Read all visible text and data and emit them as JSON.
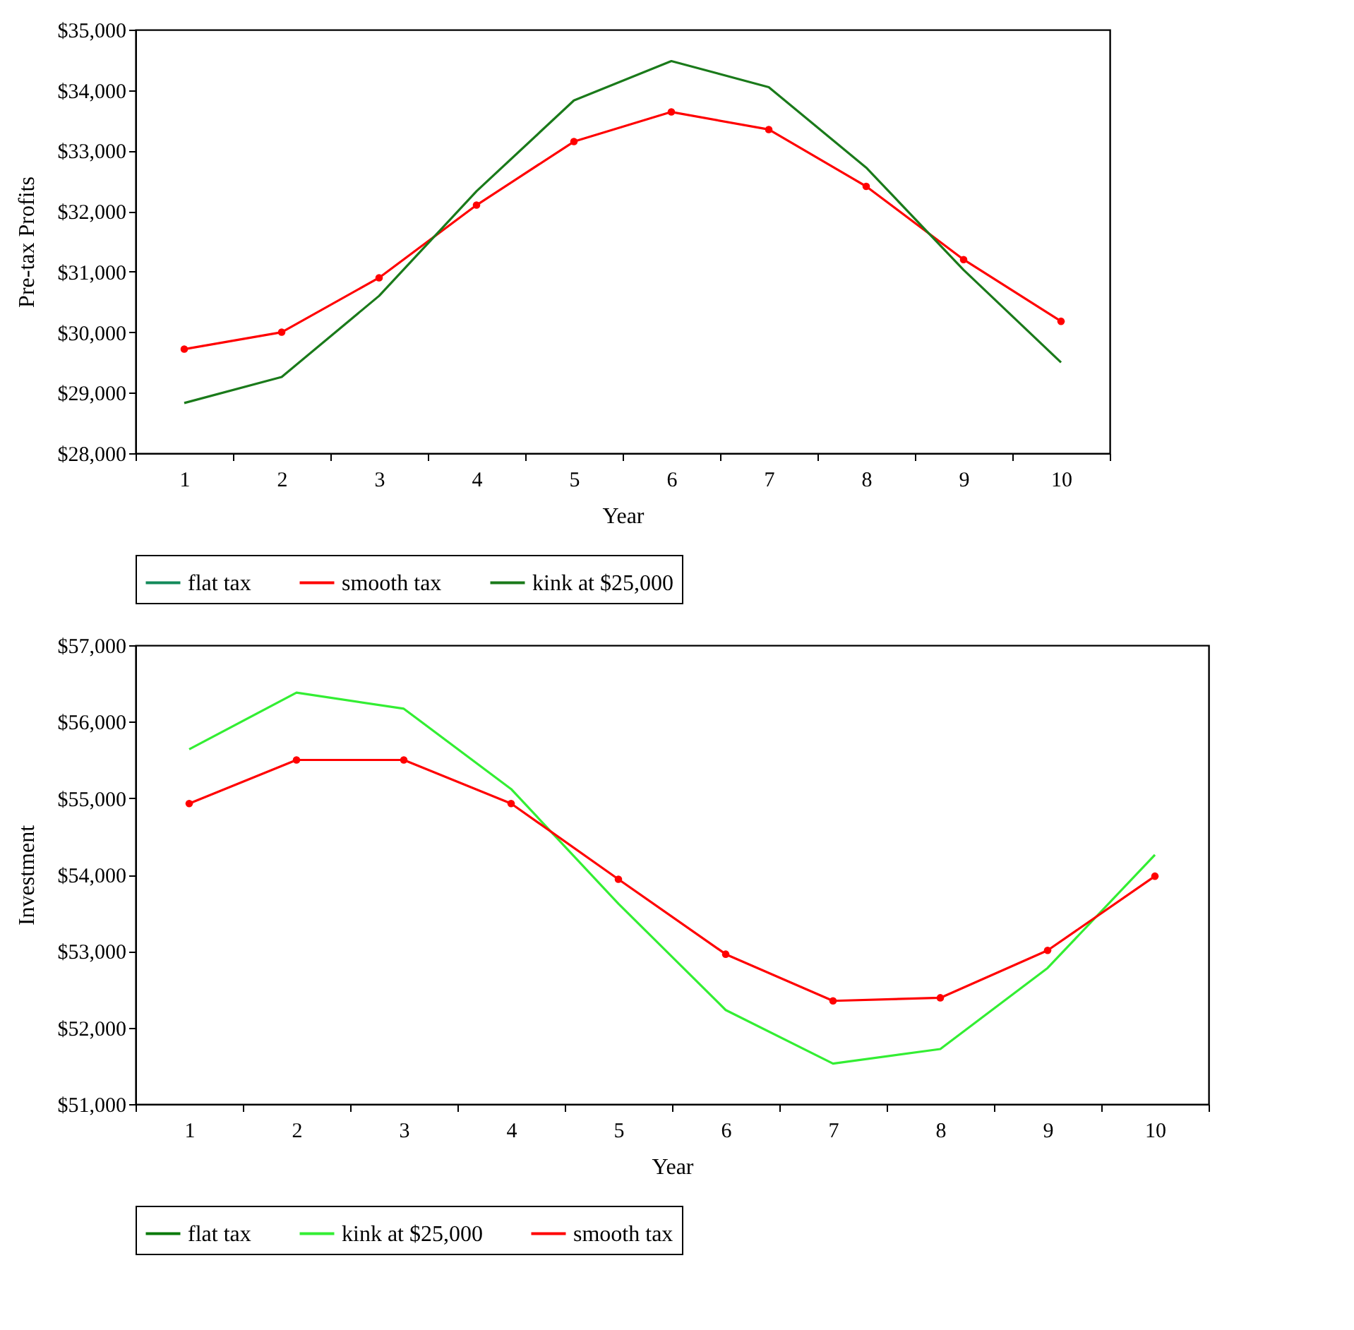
{
  "chart_data": [
    {
      "type": "line",
      "xlabel": "Year",
      "ylabel": "Pre-tax Profits",
      "categories": [
        "1",
        "2",
        "3",
        "4",
        "5",
        "6",
        "7",
        "8",
        "9",
        "10"
      ],
      "series": [
        {
          "name": "flat tax",
          "color": "#138a5a",
          "values": [
            null,
            null,
            null,
            null,
            null,
            null,
            null,
            null,
            null,
            null
          ]
        },
        {
          "name": "smooth tax",
          "color": "#ff0000",
          "values": [
            29720,
            30000,
            30900,
            32100,
            33150,
            33640,
            33350,
            32410,
            31200,
            30180
          ],
          "marker": "circle"
        },
        {
          "name": "kink at $25,000",
          "color": "#1a7a1a",
          "values": [
            28830,
            29260,
            30600,
            32330,
            33830,
            34480,
            34050,
            32720,
            31030,
            29500
          ],
          "marker": "none"
        }
      ],
      "ylim": [
        28000,
        35000
      ],
      "yticks": [
        {
          "value": 28000,
          "label": "$28,000"
        },
        {
          "value": 29000,
          "label": "$29,000"
        },
        {
          "value": 30000,
          "label": "$30,000"
        },
        {
          "value": 31000,
          "label": "$31,000"
        },
        {
          "value": 32000,
          "label": "$32,000"
        },
        {
          "value": 33000,
          "label": "$33,000"
        },
        {
          "value": 34000,
          "label": "$34,000"
        },
        {
          "value": 35000,
          "label": "$35,000"
        }
      ],
      "grid": false,
      "legend": "bottom",
      "line_style": "solid"
    },
    {
      "type": "line",
      "xlabel": "Year",
      "ylabel": "Investment",
      "categories": [
        "1",
        "2",
        "3",
        "4",
        "5",
        "6",
        "7",
        "8",
        "9",
        "10"
      ],
      "series": [
        {
          "name": "flat tax",
          "color": "#0a7a0a",
          "values": [
            null,
            null,
            null,
            null,
            null,
            null,
            null,
            null,
            null,
            null
          ]
        },
        {
          "name": "kink at $25,000",
          "color": "#33ee33",
          "values": [
            55640,
            56380,
            56170,
            55120,
            53620,
            52230,
            51530,
            51720,
            52780,
            54260
          ],
          "marker": "none"
        },
        {
          "name": "smooth tax",
          "color": "#ff0000",
          "values": [
            54930,
            55500,
            55500,
            54930,
            53940,
            52960,
            52350,
            52390,
            53010,
            53980
          ],
          "marker": "circle"
        }
      ],
      "ylim": [
        51000,
        57000
      ],
      "yticks": [
        {
          "value": 51000,
          "label": "$51,000"
        },
        {
          "value": 52000,
          "label": "$52,000"
        },
        {
          "value": 53000,
          "label": "$53,000"
        },
        {
          "value": 54000,
          "label": "$54,000"
        },
        {
          "value": 55000,
          "label": "$55,000"
        },
        {
          "value": 56000,
          "label": "$56,000"
        },
        {
          "value": 57000,
          "label": "$57,000"
        }
      ],
      "grid": false,
      "legend": "bottom",
      "line_style": "solid"
    }
  ]
}
